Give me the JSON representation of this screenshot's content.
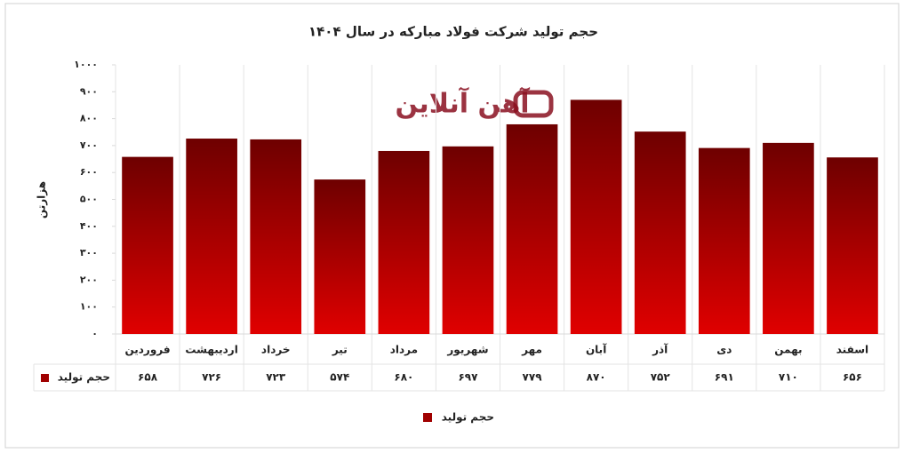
{
  "chart_data": {
    "type": "bar",
    "title": "حجم تولید شرکت فولاد مبارکه در سال ۱۴۰۴",
    "watermark": "آهن آنلاین",
    "y_label": "هزارتن",
    "categories": [
      "فروردین",
      "اردیبهشت",
      "خرداد",
      "تیر",
      "مرداد",
      "شهریور",
      "مهر",
      "آبان",
      "آذر",
      "دی",
      "بهمن",
      "اسفند"
    ],
    "series": [
      {
        "name": "حجم تولید",
        "color": "#a00000",
        "values": [
          658,
          726,
          723,
          574,
          680,
          697,
          779,
          870,
          752,
          691,
          710,
          656
        ],
        "value_labels": [
          "۶۵۸",
          "۷۲۶",
          "۷۲۳",
          "۵۷۴",
          "۶۸۰",
          "۶۹۷",
          "۷۷۹",
          "۸۷۰",
          "۷۵۲",
          "۶۹۱",
          "۷۱۰",
          "۶۵۶"
        ]
      }
    ],
    "ylim": [
      0,
      1000
    ],
    "yticks": [
      {
        "value": 0,
        "label": "۰"
      },
      {
        "value": 100,
        "label": "۱۰۰"
      },
      {
        "value": 200,
        "label": "۲۰۰"
      },
      {
        "value": 300,
        "label": "۳۰۰"
      },
      {
        "value": 400,
        "label": "۴۰۰"
      },
      {
        "value": 500,
        "label": "۵۰۰"
      },
      {
        "value": 600,
        "label": "۶۰۰"
      },
      {
        "value": 700,
        "label": "۷۰۰"
      },
      {
        "value": 800,
        "label": "۸۰۰"
      },
      {
        "value": 900,
        "label": "۹۰۰"
      },
      {
        "value": 1000,
        "label": "۱۰۰۰"
      }
    ],
    "grid": true,
    "legend": "bottom"
  }
}
